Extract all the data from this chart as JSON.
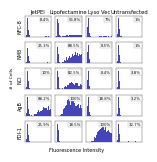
{
  "col_labels": [
    "JetPEI",
    "Lipofectamine",
    "Lyso Vec",
    "Untransfected"
  ],
  "row_labels": [
    "NFC-8",
    "NM8",
    "NCI",
    "AgB",
    "FDI-1"
  ],
  "ylabel": "# of Cells",
  "xlabel": "Fluorescence Intensity",
  "percentages": [
    [
      "8.4%",
      "56.8%",
      "7%",
      "1%"
    ],
    [
      "25.3%",
      "88.5%",
      "8.5%",
      "1%"
    ],
    [
      "10%",
      "82.5%",
      "8.4%",
      "3.8%"
    ],
    [
      "88.2%",
      "100%",
      "18.8%",
      "3.2%"
    ],
    [
      "25.9%",
      "18.5%",
      "100%",
      "32.7%"
    ]
  ],
  "bar_color": "#4444bb",
  "background": "#ffffff",
  "pct_fontsize": 2.8,
  "row_label_fontsize": 3.5,
  "col_label_fontsize": 3.8,
  "xlabel_fontsize": 3.5,
  "ylabel_fontsize": 3.2
}
